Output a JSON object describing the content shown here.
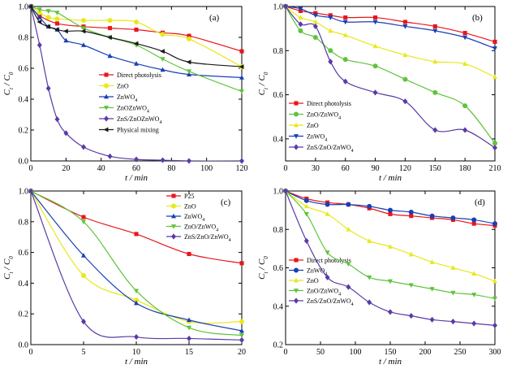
{
  "chart_data": [
    {
      "type": "line",
      "panel_label": "(a)",
      "xlabel": "t / min",
      "ylabel": "C t / C 0",
      "xlim": [
        0,
        120
      ],
      "ylim": [
        0,
        1.0
      ],
      "xticks": [
        0,
        20,
        40,
        60,
        80,
        100,
        120
      ],
      "yticks": [
        0.0,
        0.2,
        0.4,
        0.6,
        0.8,
        1.0
      ],
      "legend_position": "right",
      "series": [
        {
          "name": "Direct photolysis",
          "color": "#e8161b",
          "marker": "square",
          "x": [
            0,
            5,
            15,
            30,
            45,
            60,
            75,
            90,
            120
          ],
          "y": [
            1.0,
            0.94,
            0.89,
            0.87,
            0.86,
            0.85,
            0.83,
            0.81,
            0.71
          ]
        },
        {
          "name": "ZnO",
          "color": "#e8e81a",
          "marker": "circle",
          "x": [
            0,
            5,
            10,
            15,
            30,
            45,
            60,
            75,
            90,
            120
          ],
          "y": [
            1.0,
            0.96,
            0.93,
            0.92,
            0.91,
            0.91,
            0.9,
            0.82,
            0.79,
            0.61
          ]
        },
        {
          "name": "ZnWO 4",
          "color": "#1a3fb5",
          "marker": "triangle",
          "x": [
            0,
            5,
            10,
            15,
            20,
            30,
            45,
            60,
            75,
            90,
            120
          ],
          "y": [
            1.0,
            0.93,
            0.87,
            0.85,
            0.78,
            0.75,
            0.68,
            0.63,
            0.59,
            0.56,
            0.54
          ]
        },
        {
          "name": "ZnOZnWO 4",
          "color": "#5fc43a",
          "marker": "triangle-down",
          "x": [
            0,
            5,
            10,
            15,
            30,
            45,
            60,
            75,
            90,
            120
          ],
          "y": [
            1.0,
            0.98,
            0.97,
            0.96,
            0.86,
            0.8,
            0.75,
            0.66,
            0.58,
            0.45
          ]
        },
        {
          "name": "ZnS/ZnOZnWO 4",
          "color": "#5a3aa6",
          "marker": "diamond",
          "x": [
            0,
            5,
            10,
            15,
            20,
            30,
            45,
            60,
            75,
            90,
            120
          ],
          "y": [
            1.0,
            0.75,
            0.47,
            0.27,
            0.18,
            0.09,
            0.03,
            0.01,
            0.005,
            0.0,
            0.0
          ]
        },
        {
          "name": "Physical mixing",
          "color": "#1a1a1a",
          "marker": "triangle-left",
          "x": [
            0,
            5,
            10,
            15,
            20,
            30,
            45,
            60,
            75,
            90,
            120
          ],
          "y": [
            1.0,
            0.9,
            0.87,
            0.85,
            0.84,
            0.84,
            0.8,
            0.76,
            0.71,
            0.64,
            0.61
          ]
        }
      ]
    },
    {
      "type": "line",
      "panel_label": "(b)",
      "xlabel": "t / min",
      "ylabel": "C t / C 0",
      "xlim": [
        0,
        210
      ],
      "ylim": [
        0.3,
        1.0
      ],
      "xticks": [
        0,
        30,
        60,
        90,
        120,
        150,
        180,
        210
      ],
      "yticks": [
        0.4,
        0.6,
        0.8,
        1.0
      ],
      "legend_position": "left",
      "series": [
        {
          "name": "Direct photolysis",
          "color": "#e8161b",
          "marker": "square",
          "x": [
            0,
            15,
            30,
            45,
            60,
            90,
            120,
            150,
            180,
            210
          ],
          "y": [
            1.0,
            0.98,
            0.97,
            0.96,
            0.95,
            0.95,
            0.93,
            0.91,
            0.88,
            0.84
          ]
        },
        {
          "name": "ZnO/ZnWO 4",
          "color": "#5fc43a",
          "marker": "circle",
          "x": [
            0,
            15,
            30,
            45,
            60,
            90,
            120,
            150,
            180,
            210
          ],
          "y": [
            1.0,
            0.89,
            0.86,
            0.8,
            0.76,
            0.73,
            0.67,
            0.61,
            0.55,
            0.38
          ]
        },
        {
          "name": "ZnO",
          "color": "#e8e81a",
          "marker": "triangle",
          "x": [
            0,
            15,
            30,
            45,
            60,
            90,
            120,
            150,
            180,
            210
          ],
          "y": [
            1.0,
            0.95,
            0.93,
            0.89,
            0.87,
            0.82,
            0.78,
            0.75,
            0.74,
            0.68
          ]
        },
        {
          "name": "ZnWO 4",
          "color": "#1a3fb5",
          "marker": "triangle-down",
          "x": [
            0,
            15,
            30,
            45,
            60,
            90,
            120,
            150,
            180,
            210
          ],
          "y": [
            1.0,
            0.99,
            0.96,
            0.95,
            0.93,
            0.93,
            0.91,
            0.89,
            0.86,
            0.81
          ]
        },
        {
          "name": "ZnS/ZnO/ZnWO 4",
          "color": "#5a3aa6",
          "marker": "diamond",
          "x": [
            0,
            15,
            30,
            45,
            60,
            90,
            120,
            150,
            180,
            210
          ],
          "y": [
            1.0,
            0.92,
            0.91,
            0.75,
            0.66,
            0.61,
            0.57,
            0.44,
            0.44,
            0.36
          ]
        }
      ]
    },
    {
      "type": "line",
      "panel_label": "(c)",
      "xlabel": "t / min",
      "ylabel": "C t / C 0",
      "xlim": [
        0,
        20
      ],
      "ylim": [
        0,
        1.0
      ],
      "xticks": [
        0,
        5,
        10,
        15,
        20
      ],
      "yticks": [
        0.0,
        0.2,
        0.4,
        0.6,
        0.8,
        1.0
      ],
      "legend_position": "right",
      "series": [
        {
          "name": "P25",
          "color": "#e8161b",
          "marker": "square",
          "x": [
            0,
            5,
            10,
            15,
            20
          ],
          "y": [
            1.0,
            0.83,
            0.72,
            0.59,
            0.53
          ]
        },
        {
          "name": "ZnO",
          "color": "#e8e81a",
          "marker": "circle",
          "x": [
            0,
            5,
            10,
            15,
            20
          ],
          "y": [
            1.0,
            0.45,
            0.29,
            0.15,
            0.15
          ]
        },
        {
          "name": "ZnWO 4",
          "color": "#1a3fb5",
          "marker": "triangle",
          "x": [
            0,
            5,
            10,
            15,
            20
          ],
          "y": [
            1.0,
            0.58,
            0.27,
            0.16,
            0.09
          ]
        },
        {
          "name": "ZnO/ZnWO 4",
          "color": "#5fc43a",
          "marker": "triangle-down",
          "x": [
            0,
            5,
            10,
            15,
            20
          ],
          "y": [
            1.0,
            0.8,
            0.35,
            0.11,
            0.06
          ]
        },
        {
          "name": "ZnS/ZnO/ZnWO 4",
          "color": "#5a3aa6",
          "marker": "diamond",
          "x": [
            0,
            5,
            10,
            15,
            20
          ],
          "y": [
            1.0,
            0.15,
            0.05,
            0.04,
            0.03
          ]
        }
      ]
    },
    {
      "type": "line",
      "panel_label": "(d)",
      "xlabel": "t / min",
      "ylabel": "C t / C 0",
      "xlim": [
        0,
        300
      ],
      "ylim": [
        0.2,
        1.0
      ],
      "xticks": [
        0,
        50,
        100,
        150,
        200,
        250,
        300
      ],
      "yticks": [
        0.2,
        0.4,
        0.6,
        0.8,
        1.0
      ],
      "legend_position": "left",
      "series": [
        {
          "name": "Direct photolysis",
          "color": "#e8161b",
          "marker": "square",
          "x": [
            0,
            30,
            60,
            90,
            120,
            150,
            180,
            210,
            240,
            270,
            300
          ],
          "y": [
            1.0,
            0.96,
            0.94,
            0.93,
            0.91,
            0.88,
            0.87,
            0.86,
            0.85,
            0.83,
            0.82
          ]
        },
        {
          "name": "ZnWO 4",
          "color": "#1a3fb5",
          "marker": "circle",
          "x": [
            0,
            30,
            60,
            90,
            120,
            150,
            180,
            210,
            240,
            270,
            300
          ],
          "y": [
            1.0,
            0.95,
            0.93,
            0.93,
            0.92,
            0.9,
            0.89,
            0.87,
            0.86,
            0.85,
            0.83
          ]
        },
        {
          "name": "ZnO",
          "color": "#e8e81a",
          "marker": "triangle",
          "x": [
            0,
            30,
            60,
            90,
            120,
            150,
            180,
            210,
            240,
            270,
            300
          ],
          "y": [
            1.0,
            0.92,
            0.88,
            0.8,
            0.74,
            0.71,
            0.67,
            0.63,
            0.6,
            0.57,
            0.53
          ]
        },
        {
          "name": "ZnO/ZnWO 4",
          "color": "#5fc43a",
          "marker": "triangle-down",
          "x": [
            0,
            30,
            60,
            90,
            120,
            150,
            180,
            210,
            240,
            270,
            300
          ],
          "y": [
            1.0,
            0.88,
            0.68,
            0.62,
            0.55,
            0.53,
            0.51,
            0.49,
            0.47,
            0.46,
            0.44
          ]
        },
        {
          "name": "ZnS/ZnO/ZnWO 4",
          "color": "#5a3aa6",
          "marker": "diamond",
          "x": [
            0,
            30,
            60,
            90,
            120,
            150,
            180,
            210,
            240,
            270,
            300
          ],
          "y": [
            1.0,
            0.74,
            0.55,
            0.5,
            0.42,
            0.37,
            0.35,
            0.33,
            0.32,
            0.31,
            0.3
          ]
        }
      ]
    }
  ]
}
